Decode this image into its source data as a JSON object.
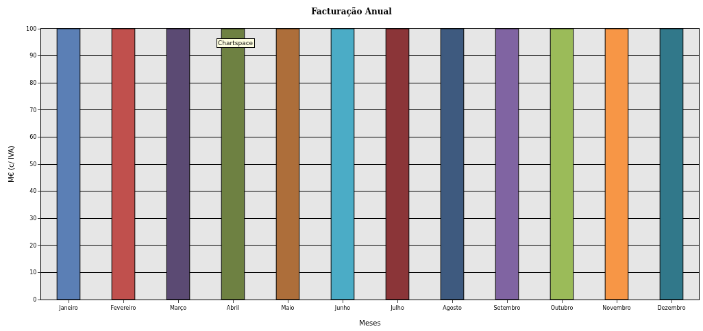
{
  "chart_data": {
    "type": "bar",
    "title": "Facturação Anual",
    "xlabel": "Meses",
    "ylabel": "M€ (c/ IVA)",
    "categories": [
      "Janeiro",
      "Fevereiro",
      "Março",
      "Abril",
      "Maio",
      "Junho",
      "Julho",
      "Agosto",
      "Setembro",
      "Outubro",
      "Novembro",
      "Dezembro"
    ],
    "values": [
      100,
      100,
      100,
      100,
      100,
      100,
      100,
      100,
      100,
      100,
      100,
      100
    ],
    "colors": [
      "#5b7fb5",
      "#c0504d",
      "#5b4a73",
      "#6e8142",
      "#ad6e3a",
      "#4bacc6",
      "#8b3538",
      "#3e5a7f",
      "#8064a2",
      "#9bbb59",
      "#f79646",
      "#31788a"
    ],
    "ylim": [
      0,
      100
    ],
    "yticks": [
      0,
      10,
      20,
      30,
      40,
      50,
      60,
      70,
      80,
      90,
      100
    ],
    "grid": true,
    "annotations": [
      "Chartspace"
    ]
  }
}
